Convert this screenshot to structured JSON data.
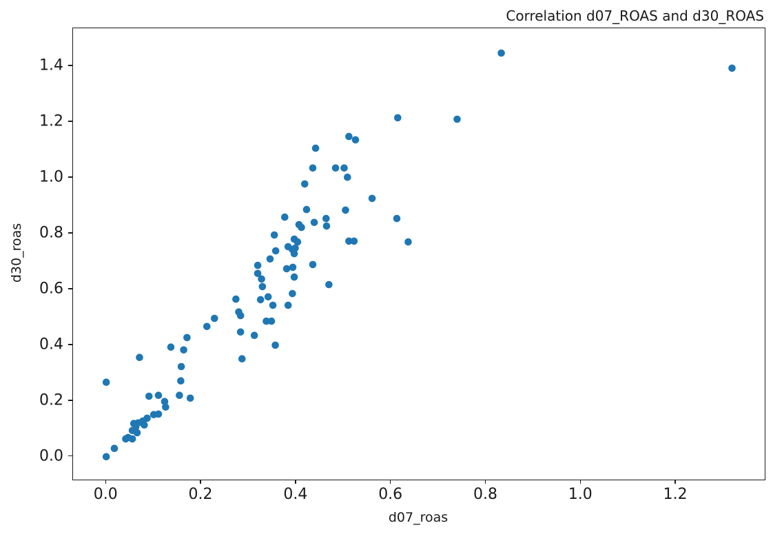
{
  "chart_data": {
    "type": "scatter",
    "title": "Correlation d07_ROAS and d30_ROAS",
    "xlabel": "d07_roas",
    "ylabel": "d30_roas",
    "xlim": [
      -0.07,
      1.387
    ],
    "ylim": [
      -0.082,
      1.536
    ],
    "x_ticks": [
      0.0,
      0.2,
      0.4,
      0.6,
      0.8,
      1.0,
      1.2
    ],
    "y_ticks": [
      0.0,
      0.2,
      0.4,
      0.6,
      0.8,
      1.0,
      1.2,
      1.4
    ],
    "grid": false,
    "legend": null,
    "marker_color": "#1f77b4",
    "background_color": "#ffffff",
    "points": [
      [
        0.0,
        0.0
      ],
      [
        0.017,
        0.03
      ],
      [
        0.041,
        0.064
      ],
      [
        0.046,
        0.069
      ],
      [
        0.055,
        0.064
      ],
      [
        0.055,
        0.094
      ],
      [
        0.065,
        0.086
      ],
      [
        0.062,
        0.106
      ],
      [
        0.058,
        0.119
      ],
      [
        0.067,
        0.121
      ],
      [
        0.077,
        0.128
      ],
      [
        0.08,
        0.114
      ],
      [
        0.086,
        0.138
      ],
      [
        0.09,
        0.217
      ],
      [
        0.1,
        0.151
      ],
      [
        0.11,
        0.153
      ],
      [
        0.11,
        0.22
      ],
      [
        0.123,
        0.198
      ],
      [
        0.125,
        0.178
      ],
      [
        0.136,
        0.393
      ],
      [
        0.154,
        0.22
      ],
      [
        0.157,
        0.272
      ],
      [
        0.158,
        0.323
      ],
      [
        0.163,
        0.383
      ],
      [
        0.17,
        0.427
      ],
      [
        0.177,
        0.21
      ],
      [
        0.0,
        0.267
      ],
      [
        0.07,
        0.356
      ],
      [
        0.212,
        0.467
      ],
      [
        0.228,
        0.496
      ],
      [
        0.273,
        0.565
      ],
      [
        0.279,
        0.519
      ],
      [
        0.283,
        0.506
      ],
      [
        0.283,
        0.447
      ],
      [
        0.286,
        0.351
      ],
      [
        0.312,
        0.435
      ],
      [
        0.337,
        0.486
      ],
      [
        0.348,
        0.486
      ],
      [
        0.356,
        0.4
      ],
      [
        0.325,
        0.563
      ],
      [
        0.327,
        0.637
      ],
      [
        0.329,
        0.61
      ],
      [
        0.341,
        0.573
      ],
      [
        0.319,
        0.686
      ],
      [
        0.319,
        0.657
      ],
      [
        0.345,
        0.709
      ],
      [
        0.354,
        0.795
      ],
      [
        0.357,
        0.738
      ],
      [
        0.376,
        0.859
      ],
      [
        0.38,
        0.674
      ],
      [
        0.383,
        0.753
      ],
      [
        0.383,
        0.543
      ],
      [
        0.392,
        0.743
      ],
      [
        0.392,
        0.585
      ],
      [
        0.393,
        0.679
      ],
      [
        0.396,
        0.78
      ],
      [
        0.396,
        0.728
      ],
      [
        0.398,
        0.748
      ],
      [
        0.403,
        0.77
      ],
      [
        0.406,
        0.832
      ],
      [
        0.411,
        0.822
      ],
      [
        0.396,
        0.644
      ],
      [
        0.351,
        0.543
      ],
      [
        0.418,
        0.978
      ],
      [
        0.422,
        0.886
      ],
      [
        0.435,
        1.035
      ],
      [
        0.435,
        0.689
      ],
      [
        0.438,
        0.84
      ],
      [
        0.441,
        1.106
      ],
      [
        0.463,
        0.854
      ],
      [
        0.464,
        0.827
      ],
      [
        0.469,
        0.617
      ],
      [
        0.483,
        1.035
      ],
      [
        0.501,
        1.035
      ],
      [
        0.504,
        0.884
      ],
      [
        0.508,
        1.002
      ],
      [
        0.511,
        1.148
      ],
      [
        0.511,
        0.773
      ],
      [
        0.522,
        0.773
      ],
      [
        0.525,
        1.136
      ],
      [
        0.56,
        0.926
      ],
      [
        0.612,
        0.854
      ],
      [
        0.614,
        1.215
      ],
      [
        0.636,
        0.77
      ],
      [
        0.739,
        1.21
      ],
      [
        0.832,
        1.447
      ],
      [
        1.318,
        1.393
      ]
    ]
  }
}
